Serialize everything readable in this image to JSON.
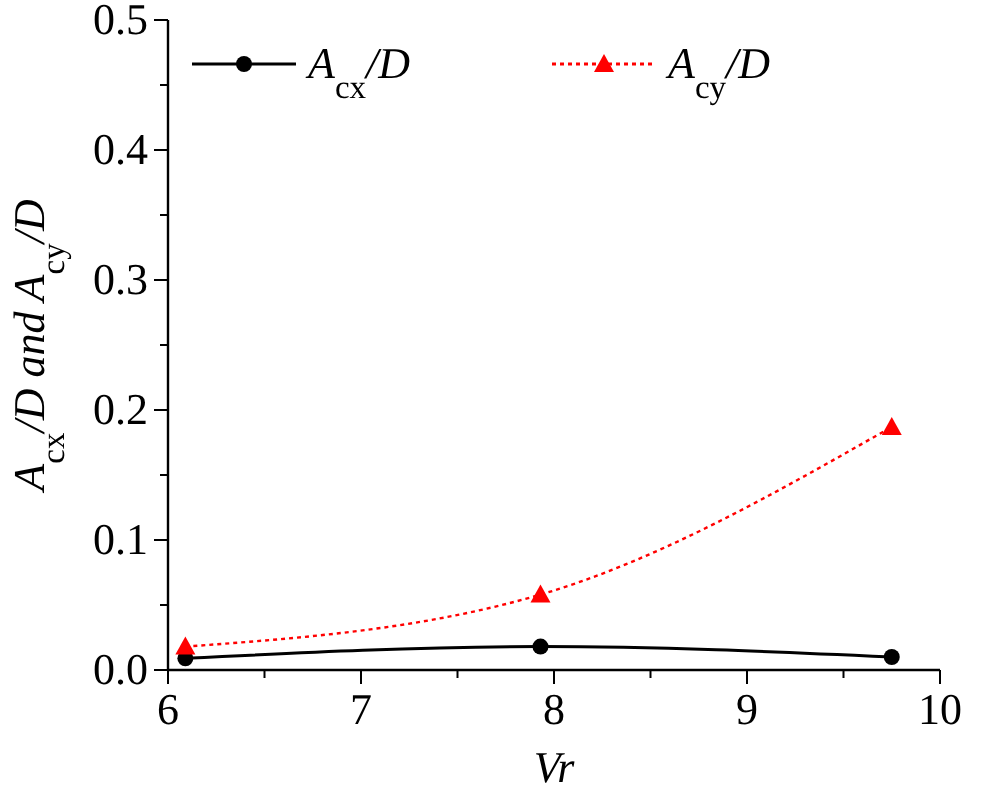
{
  "chart_data": {
    "type": "line",
    "xlabel": "Vr",
    "ylabel": "A$_{cx}$/D and A$_{cy}$/D",
    "x": [
      6.09,
      7.93,
      9.75
    ],
    "series": [
      {
        "name": "A$_{cx}$/D",
        "color": "#000000",
        "values": [
          0.009,
          0.018,
          0.01
        ],
        "marker": "circle",
        "line_style": "solid"
      },
      {
        "name": "A$_{cy}$/D",
        "color": "#ff0000",
        "values": [
          0.018,
          0.058,
          0.187
        ],
        "marker": "triangle",
        "line_style": "dotted"
      }
    ],
    "xlim": [
      6,
      10
    ],
    "ylim": [
      0,
      0.5
    ],
    "xticks": [
      6,
      {
        "value": 6.5,
        "label": null
      },
      7,
      {
        "value": 7.5,
        "label": null
      },
      8,
      {
        "value": 8.5,
        "label": null
      },
      9,
      {
        "value": 9.5,
        "label": null
      },
      10
    ],
    "yticks": [
      "0.0",
      {
        "value": 0.05,
        "label": null
      },
      {
        "value": 0.1,
        "label": "0.1"
      },
      {
        "value": 0.15,
        "label": null
      },
      {
        "value": 0.2,
        "label": "0.2"
      },
      {
        "value": 0.25,
        "label": null
      },
      {
        "value": 0.3,
        "label": "0.3"
      },
      {
        "value": 0.35,
        "label": null
      },
      {
        "value": 0.4,
        "label": "0.4"
      },
      {
        "value": 0.45,
        "label": null
      },
      {
        "value": 0.5,
        "label": "0.5"
      }
    ],
    "legend": "top left",
    "grid": false
  }
}
